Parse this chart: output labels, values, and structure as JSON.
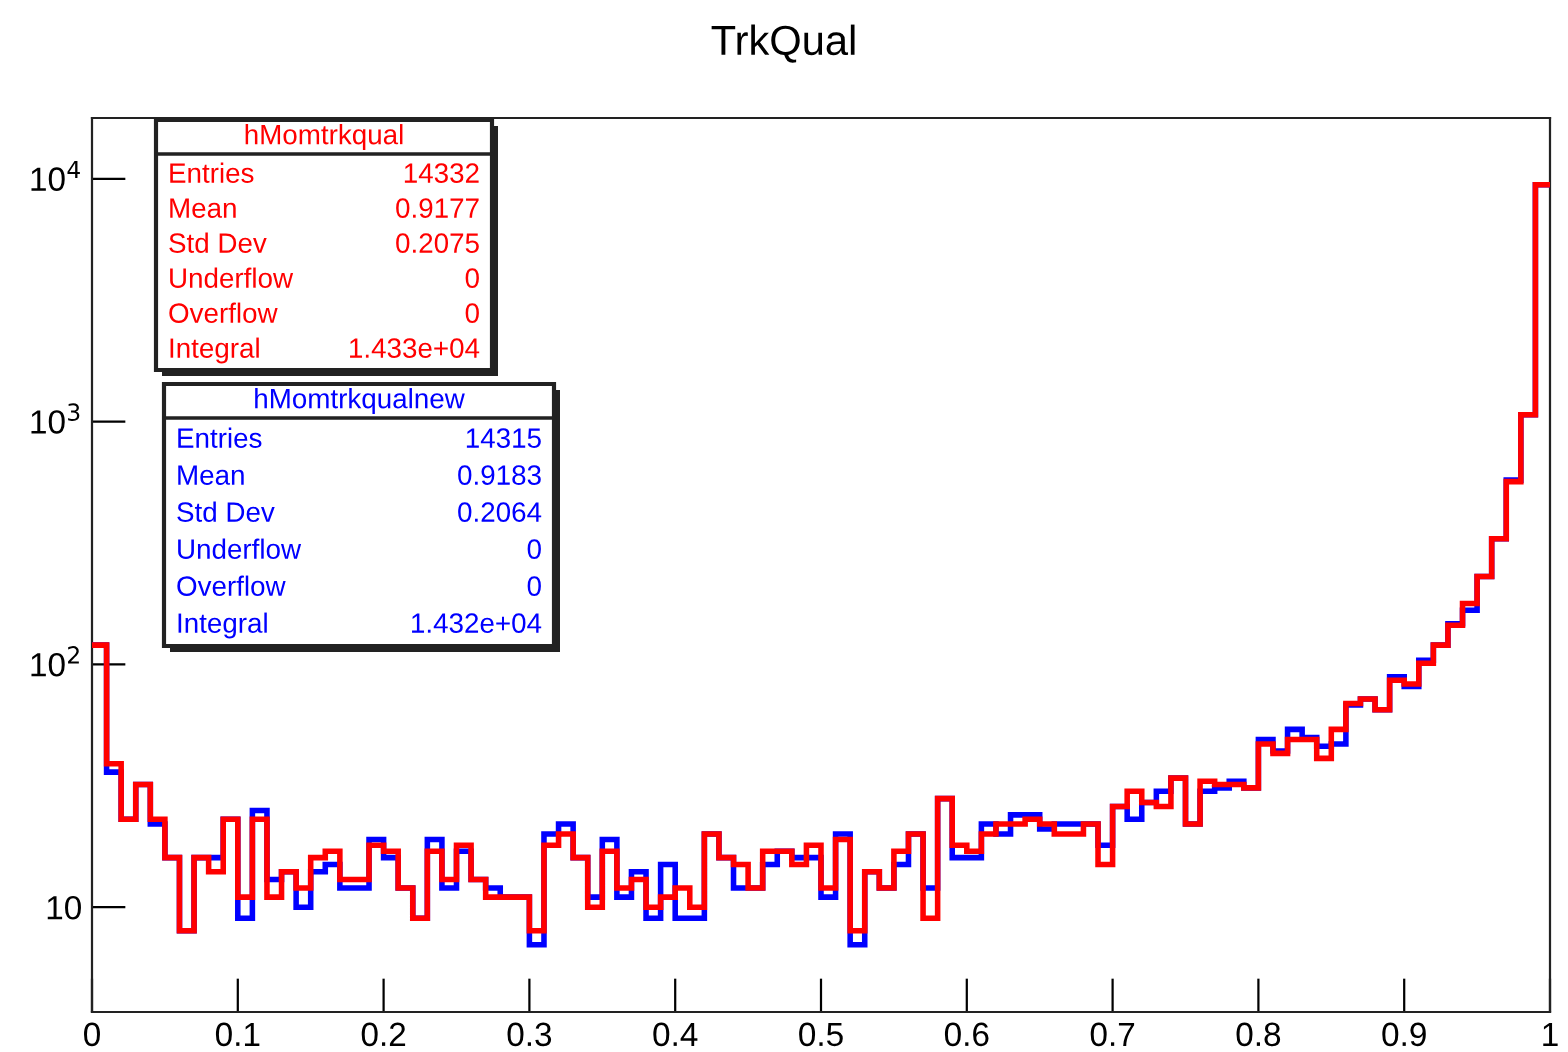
{
  "chart_data": {
    "type": "histogram",
    "title": "TrkQual",
    "bins": [
      0,
      0.01,
      0.02,
      0.03,
      0.04,
      0.05,
      0.06,
      0.07,
      0.08,
      0.09,
      0.1,
      0.11,
      0.12,
      0.13,
      0.14,
      0.15,
      0.16,
      0.17,
      0.18,
      0.19,
      0.2,
      0.21,
      0.22,
      0.23,
      0.24,
      0.25,
      0.26,
      0.27,
      0.28,
      0.29,
      0.3,
      0.31,
      0.32,
      0.33,
      0.34,
      0.35,
      0.36,
      0.37,
      0.38,
      0.39,
      0.4,
      0.41,
      0.42,
      0.43,
      0.44,
      0.45,
      0.46,
      0.47,
      0.48,
      0.49,
      0.5,
      0.51,
      0.52,
      0.53,
      0.54,
      0.55,
      0.56,
      0.57,
      0.58,
      0.59,
      0.6,
      0.61,
      0.62,
      0.63,
      0.64,
      0.65,
      0.66,
      0.67,
      0.68,
      0.69,
      0.7,
      0.71,
      0.72,
      0.73,
      0.74,
      0.75,
      0.76,
      0.77,
      0.78,
      0.79,
      0.8,
      0.81,
      0.82,
      0.83,
      0.84,
      0.85,
      0.86,
      0.87,
      0.88,
      0.89,
      0.9,
      0.91,
      0.92,
      0.93,
      0.94,
      0.95,
      0.96,
      0.97,
      0.98,
      0.99,
      1
    ],
    "series": [
      {
        "name": "hMomtrkqualnew",
        "color": "#0000ff",
        "values": [
          120,
          36,
          23,
          32,
          22,
          16,
          8,
          16,
          16,
          23,
          9,
          25,
          13,
          14,
          10,
          14,
          15,
          12,
          12,
          19,
          16,
          12,
          9,
          19,
          12,
          17,
          13,
          12,
          11,
          11,
          7,
          20,
          22,
          16,
          11,
          19,
          11,
          14,
          9,
          15,
          9,
          9,
          20,
          16,
          12,
          12,
          15,
          17,
          16,
          16,
          11,
          20,
          7,
          14,
          12,
          15,
          20,
          12,
          28,
          16,
          16,
          22,
          20,
          24,
          24,
          21,
          22,
          22,
          22,
          18,
          26,
          23,
          27,
          30,
          34,
          22,
          30,
          31,
          33,
          31,
          49,
          44,
          54,
          50,
          46,
          47,
          68,
          72,
          65,
          89,
          81,
          104,
          120,
          147,
          167,
          230,
          329,
          574,
          1067,
          9450
        ]
      },
      {
        "name": "hMomtrkqual",
        "color": "#ff0000",
        "values": [
          120,
          39,
          23,
          32,
          23,
          16,
          8,
          16,
          14,
          23,
          11,
          23,
          11,
          14,
          12,
          16,
          17,
          13,
          13,
          18,
          17,
          12,
          9,
          17,
          13,
          18,
          13,
          11,
          11,
          11,
          8,
          18,
          20,
          16,
          10,
          17,
          12,
          13,
          10,
          11,
          12,
          10,
          20,
          16,
          15,
          12,
          17,
          17,
          15,
          18,
          12,
          19,
          8,
          14,
          12,
          17,
          20,
          9,
          28,
          18,
          17,
          20,
          22,
          22,
          23,
          22,
          20,
          20,
          22,
          15,
          26,
          30,
          27,
          26,
          34,
          22,
          33,
          32,
          32,
          31,
          47,
          43,
          49,
          49,
          41,
          54,
          69,
          72,
          65,
          86,
          83,
          101,
          120,
          145,
          178,
          230,
          329,
          566,
          1067,
          9450
        ]
      }
    ],
    "xlim": [
      0,
      1
    ],
    "xticks": [
      0,
      0.1,
      0.2,
      0.3,
      0.4,
      0.5,
      0.6,
      0.7,
      0.8,
      0.9,
      1
    ],
    "log": "y",
    "ylim": [
      3.7,
      17800
    ],
    "yticks": [
      10,
      {
        "value": 100,
        "label": "10$^{2}$"
      },
      {
        "value": 1000,
        "label": "10$^{3}$"
      },
      {
        "value": 10000,
        "label": "10$^{4}$"
      }
    ],
    "annotations": [
      "Entries",
      "14315",
      "Mean",
      "0.9183",
      "Std Dev",
      "0.2064",
      "Underflow",
      "0",
      "Overflow",
      "0",
      "Integral",
      "1.432e+04",
      "Entries",
      "14332",
      "Mean",
      "0.9177",
      "Std Dev",
      "0.2075",
      "Underflow",
      "0",
      "Overflow",
      "0",
      "Integral",
      "1.433e+04"
    ]
  }
}
